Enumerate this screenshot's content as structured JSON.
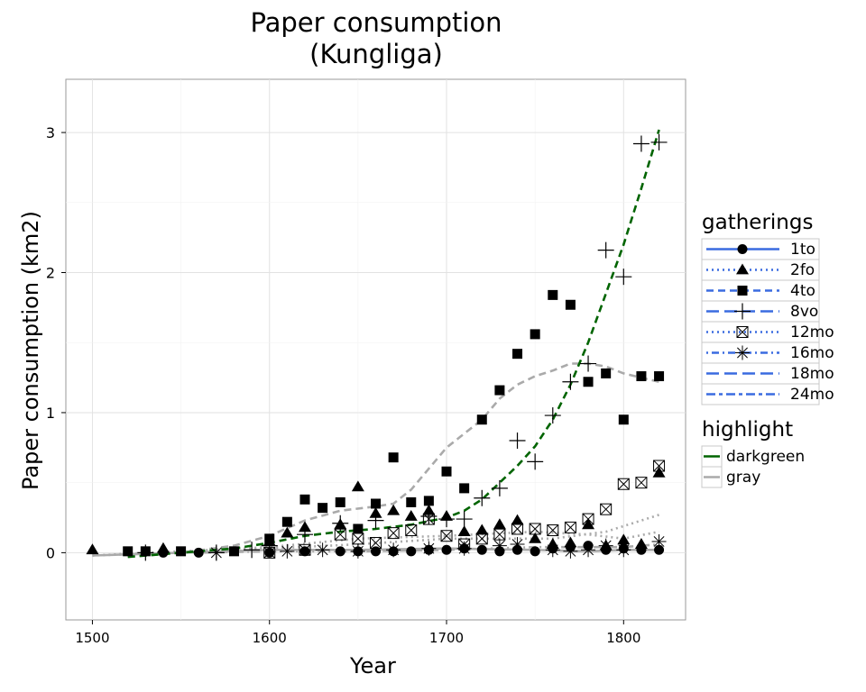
{
  "chart_data": {
    "type": "scatter",
    "title": [
      "Paper consumption",
      "(Kungliga)"
    ],
    "xlabel": "Year",
    "ylabel": "Paper consumption (km2)",
    "xlim": [
      1485,
      1835
    ],
    "ylim": [
      -0.48,
      3.38
    ],
    "xticks": [
      1500,
      1600,
      1700,
      1800
    ],
    "yticks": [
      0,
      1,
      2,
      3
    ],
    "grid": true,
    "legend_position": "right",
    "legends": [
      {
        "title": "gatherings",
        "entries": [
          {
            "label": "1to",
            "shape": "circle",
            "dash": "solid"
          },
          {
            "label": "2fo",
            "shape": "triangle",
            "dash": "dotted"
          },
          {
            "label": "4to",
            "shape": "square",
            "dash": "dashed"
          },
          {
            "label": "8vo",
            "shape": "plus",
            "dash": "longdash"
          },
          {
            "label": "12mo",
            "shape": "boxx",
            "dash": "dotted"
          },
          {
            "label": "16mo",
            "shape": "star",
            "dash": "dotdash"
          },
          {
            "label": "18mo",
            "shape": "none",
            "dash": "longdash"
          },
          {
            "label": "24mo",
            "shape": "none",
            "dash": "twodash"
          }
        ]
      },
      {
        "title": "highlight",
        "entries": [
          {
            "label": "darkgreen",
            "color": "#006400"
          },
          {
            "label": "gray",
            "color": "#aaaaaa"
          }
        ]
      }
    ],
    "series": [
      {
        "name": "1to",
        "shape": "circle",
        "points": [
          [
            1540,
            0.0
          ],
          [
            1560,
            0.0
          ],
          [
            1600,
            0.0
          ],
          [
            1620,
            0.01
          ],
          [
            1640,
            0.01
          ],
          [
            1650,
            0.01
          ],
          [
            1660,
            0.01
          ],
          [
            1670,
            0.01
          ],
          [
            1680,
            0.01
          ],
          [
            1690,
            0.02
          ],
          [
            1700,
            0.02
          ],
          [
            1710,
            0.03
          ],
          [
            1720,
            0.02
          ],
          [
            1730,
            0.01
          ],
          [
            1740,
            0.02
          ],
          [
            1750,
            0.01
          ],
          [
            1760,
            0.03
          ],
          [
            1770,
            0.04
          ],
          [
            1780,
            0.05
          ],
          [
            1790,
            0.02
          ],
          [
            1800,
            0.03
          ],
          [
            1810,
            0.02
          ],
          [
            1820,
            0.02
          ]
        ]
      },
      {
        "name": "2fo",
        "shape": "triangle",
        "points": [
          [
            1500,
            0.02
          ],
          [
            1540,
            0.03
          ],
          [
            1600,
            0.08
          ],
          [
            1610,
            0.14
          ],
          [
            1620,
            0.18
          ],
          [
            1640,
            0.2
          ],
          [
            1650,
            0.47
          ],
          [
            1660,
            0.28
          ],
          [
            1670,
            0.3
          ],
          [
            1680,
            0.26
          ],
          [
            1690,
            0.3
          ],
          [
            1700,
            0.26
          ],
          [
            1710,
            0.15
          ],
          [
            1720,
            0.16
          ],
          [
            1730,
            0.2
          ],
          [
            1740,
            0.23
          ],
          [
            1750,
            0.1
          ],
          [
            1760,
            0.06
          ],
          [
            1770,
            0.07
          ],
          [
            1780,
            0.2
          ],
          [
            1790,
            0.05
          ],
          [
            1800,
            0.09
          ],
          [
            1810,
            0.06
          ],
          [
            1820,
            0.57
          ]
        ]
      },
      {
        "name": "4to",
        "shape": "square",
        "points": [
          [
            1520,
            0.01
          ],
          [
            1530,
            0.01
          ],
          [
            1550,
            0.01
          ],
          [
            1580,
            0.01
          ],
          [
            1600,
            0.1
          ],
          [
            1610,
            0.22
          ],
          [
            1620,
            0.38
          ],
          [
            1630,
            0.32
          ],
          [
            1640,
            0.36
          ],
          [
            1650,
            0.17
          ],
          [
            1660,
            0.35
          ],
          [
            1670,
            0.68
          ],
          [
            1680,
            0.36
          ],
          [
            1690,
            0.37
          ],
          [
            1700,
            0.58
          ],
          [
            1710,
            0.46
          ],
          [
            1720,
            0.95
          ],
          [
            1730,
            1.16
          ],
          [
            1740,
            1.42
          ],
          [
            1750,
            1.56
          ],
          [
            1760,
            1.84
          ],
          [
            1770,
            1.77
          ],
          [
            1780,
            1.22
          ],
          [
            1790,
            1.28
          ],
          [
            1800,
            0.95
          ],
          [
            1810,
            1.26
          ],
          [
            1820,
            1.26
          ]
        ]
      },
      {
        "name": "8vo",
        "shape": "plus",
        "points": [
          [
            1530,
            0.0
          ],
          [
            1570,
            0.0
          ],
          [
            1590,
            0.02
          ],
          [
            1600,
            0.05
          ],
          [
            1620,
            0.13
          ],
          [
            1640,
            0.21
          ],
          [
            1660,
            0.23
          ],
          [
            1690,
            0.26
          ],
          [
            1700,
            0.24
          ],
          [
            1710,
            0.24
          ],
          [
            1720,
            0.39
          ],
          [
            1730,
            0.46
          ],
          [
            1740,
            0.8
          ],
          [
            1750,
            0.65
          ],
          [
            1760,
            0.98
          ],
          [
            1770,
            1.22
          ],
          [
            1780,
            1.35
          ],
          [
            1790,
            2.16
          ],
          [
            1800,
            1.97
          ],
          [
            1810,
            2.92
          ],
          [
            1820,
            2.93
          ]
        ]
      },
      {
        "name": "12mo",
        "shape": "boxx",
        "points": [
          [
            1600,
            0.0
          ],
          [
            1620,
            0.02
          ],
          [
            1640,
            0.13
          ],
          [
            1650,
            0.1
          ],
          [
            1660,
            0.07
          ],
          [
            1670,
            0.14
          ],
          [
            1680,
            0.16
          ],
          [
            1690,
            0.24
          ],
          [
            1700,
            0.12
          ],
          [
            1710,
            0.06
          ],
          [
            1720,
            0.1
          ],
          [
            1730,
            0.13
          ],
          [
            1740,
            0.17
          ],
          [
            1750,
            0.17
          ],
          [
            1760,
            0.16
          ],
          [
            1770,
            0.18
          ],
          [
            1780,
            0.24
          ],
          [
            1790,
            0.31
          ],
          [
            1800,
            0.49
          ],
          [
            1810,
            0.5
          ],
          [
            1820,
            0.62
          ]
        ]
      },
      {
        "name": "16mo",
        "shape": "star",
        "points": [
          [
            1570,
            0.0
          ],
          [
            1610,
            0.01
          ],
          [
            1630,
            0.02
          ],
          [
            1650,
            0.01
          ],
          [
            1670,
            0.02
          ],
          [
            1690,
            0.03
          ],
          [
            1710,
            0.03
          ],
          [
            1730,
            0.05
          ],
          [
            1740,
            0.06
          ],
          [
            1760,
            0.02
          ],
          [
            1770,
            0.01
          ],
          [
            1780,
            0.02
          ],
          [
            1790,
            0.05
          ],
          [
            1800,
            0.02
          ],
          [
            1820,
            0.08
          ]
        ]
      }
    ],
    "smooth_lines": [
      {
        "color": "#006400",
        "dash": "dashed",
        "points": [
          [
            1520,
            -0.03
          ],
          [
            1550,
            0.0
          ],
          [
            1580,
            0.03
          ],
          [
            1600,
            0.07
          ],
          [
            1620,
            0.12
          ],
          [
            1640,
            0.15
          ],
          [
            1660,
            0.17
          ],
          [
            1680,
            0.2
          ],
          [
            1700,
            0.25
          ],
          [
            1710,
            0.3
          ],
          [
            1720,
            0.38
          ],
          [
            1730,
            0.5
          ],
          [
            1740,
            0.62
          ],
          [
            1750,
            0.76
          ],
          [
            1760,
            0.95
          ],
          [
            1770,
            1.2
          ],
          [
            1780,
            1.5
          ],
          [
            1790,
            1.85
          ],
          [
            1800,
            2.2
          ],
          [
            1810,
            2.6
          ],
          [
            1820,
            3.02
          ]
        ]
      },
      {
        "color": "#aaaaaa",
        "dash": "dashed",
        "points": [
          [
            1520,
            -0.03
          ],
          [
            1550,
            0.0
          ],
          [
            1580,
            0.05
          ],
          [
            1600,
            0.12
          ],
          [
            1620,
            0.23
          ],
          [
            1640,
            0.3
          ],
          [
            1660,
            0.33
          ],
          [
            1670,
            0.35
          ],
          [
            1680,
            0.45
          ],
          [
            1690,
            0.6
          ],
          [
            1700,
            0.75
          ],
          [
            1710,
            0.85
          ],
          [
            1720,
            0.95
          ],
          [
            1730,
            1.1
          ],
          [
            1740,
            1.2
          ],
          [
            1750,
            1.26
          ],
          [
            1760,
            1.3
          ],
          [
            1770,
            1.35
          ],
          [
            1780,
            1.35
          ],
          [
            1790,
            1.33
          ],
          [
            1800,
            1.28
          ],
          [
            1810,
            1.25
          ],
          [
            1820,
            1.22
          ]
        ]
      },
      {
        "color": "#aaaaaa",
        "dash": "dotted",
        "points": [
          [
            1500,
            -0.02
          ],
          [
            1550,
            0.0
          ],
          [
            1600,
            0.03
          ],
          [
            1650,
            0.06
          ],
          [
            1700,
            0.1
          ],
          [
            1730,
            0.1
          ],
          [
            1760,
            0.1
          ],
          [
            1790,
            0.15
          ],
          [
            1820,
            0.27
          ]
        ]
      },
      {
        "color": "#aaaaaa",
        "dash": "solid",
        "points": [
          [
            1500,
            -0.02
          ],
          [
            1550,
            0.0
          ],
          [
            1600,
            0.02
          ],
          [
            1650,
            0.02
          ],
          [
            1700,
            0.03
          ],
          [
            1750,
            0.02
          ],
          [
            1780,
            0.01
          ],
          [
            1800,
            0.02
          ],
          [
            1820,
            0.02
          ]
        ]
      },
      {
        "color": "#aaaaaa",
        "dash": "dotted",
        "points": [
          [
            1500,
            -0.02
          ],
          [
            1550,
            0.01
          ],
          [
            1600,
            0.04
          ],
          [
            1650,
            0.1
          ],
          [
            1700,
            0.12
          ],
          [
            1750,
            0.15
          ],
          [
            1780,
            0.13
          ],
          [
            1800,
            0.1
          ],
          [
            1820,
            0.15
          ]
        ]
      },
      {
        "color": "#aaaaaa",
        "dash": "dotdash",
        "points": [
          [
            1560,
            0.0
          ],
          [
            1600,
            0.01
          ],
          [
            1650,
            0.01
          ],
          [
            1700,
            0.02
          ],
          [
            1750,
            0.04
          ],
          [
            1780,
            0.04
          ],
          [
            1800,
            0.04
          ],
          [
            1820,
            0.06
          ]
        ]
      }
    ]
  }
}
